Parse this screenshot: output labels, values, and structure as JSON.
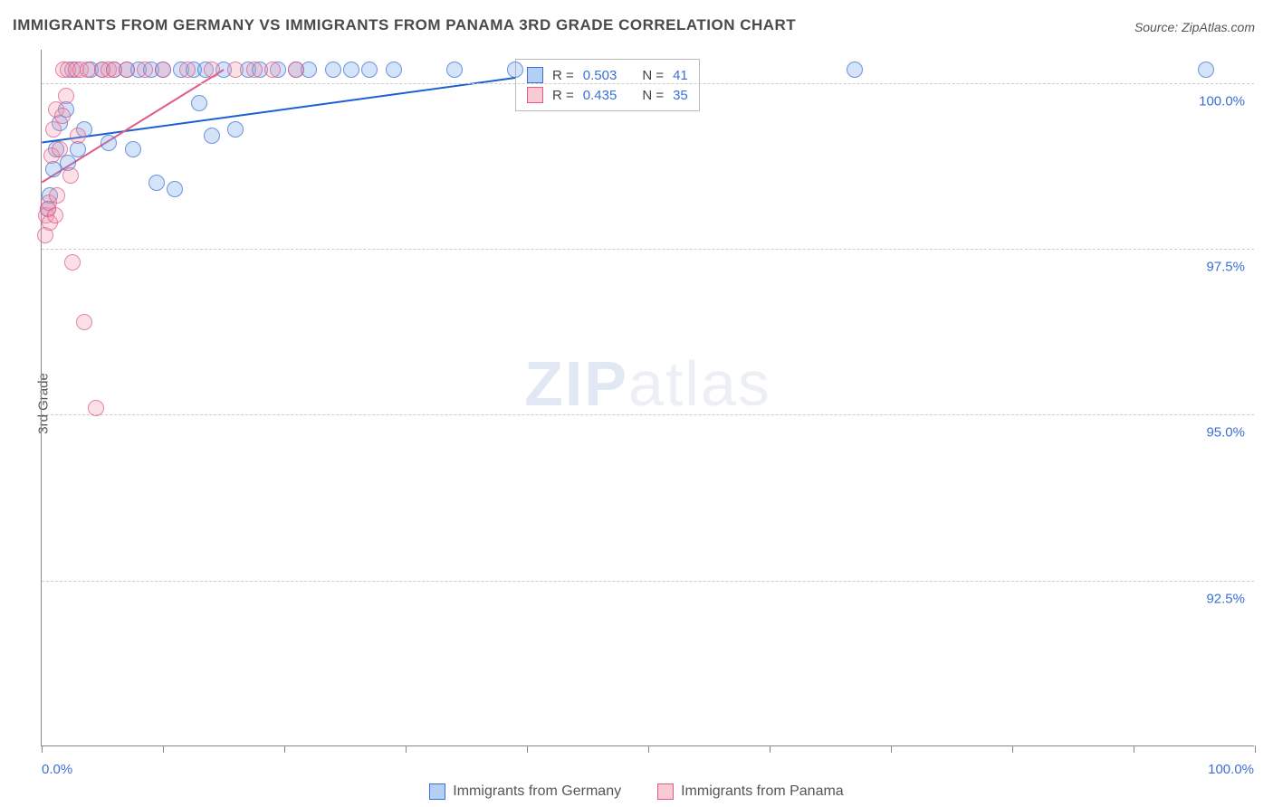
{
  "title": "IMMIGRANTS FROM GERMANY VS IMMIGRANTS FROM PANAMA 3RD GRADE CORRELATION CHART",
  "source_label": "Source: ZipAtlas.com",
  "y_axis_title": "3rd Grade",
  "watermark": {
    "bold": "ZIP",
    "light": "atlas"
  },
  "chart": {
    "type": "scatter",
    "background_color": "#ffffff",
    "grid_color": "#cccccc",
    "axis_color": "#888888",
    "text_color": "#555555",
    "value_color": "#3b6fd6",
    "xlim": [
      0,
      100
    ],
    "ylim": [
      90,
      100.5
    ],
    "x_ticks": [
      0,
      10,
      20,
      30,
      40,
      50,
      60,
      70,
      80,
      90,
      100
    ],
    "x_tick_labels": {
      "0": "0.0%",
      "100": "100.0%"
    },
    "y_gridlines": [
      92.5,
      95.0,
      97.5,
      100.0
    ],
    "y_tick_labels": {
      "92.5": "92.5%",
      "95.0": "95.0%",
      "97.5": "97.5%",
      "100.0": "100.0%"
    },
    "marker_size": 18,
    "series": [
      {
        "name": "Immigrants from Germany",
        "fill_color": "rgba(108,160,230,0.4)",
        "stroke_color": "#3b6fd6",
        "r_value": "0.503",
        "n_value": "41",
        "trendline": {
          "x1": 0,
          "y1": 99.1,
          "x2": 40,
          "y2": 100.1,
          "color": "#1b5fd1",
          "width": 2
        },
        "points": [
          [
            0.5,
            98.1
          ],
          [
            0.7,
            98.3
          ],
          [
            1.0,
            98.7
          ],
          [
            1.2,
            99.0
          ],
          [
            1.5,
            99.4
          ],
          [
            2.0,
            99.6
          ],
          [
            2.2,
            98.8
          ],
          [
            2.5,
            100.2
          ],
          [
            3.0,
            99.0
          ],
          [
            3.5,
            99.3
          ],
          [
            4.0,
            100.2
          ],
          [
            5.0,
            100.2
          ],
          [
            5.5,
            99.1
          ],
          [
            6.0,
            100.2
          ],
          [
            7.0,
            100.2
          ],
          [
            7.5,
            99.0
          ],
          [
            8.0,
            100.2
          ],
          [
            9.0,
            100.2
          ],
          [
            9.5,
            98.5
          ],
          [
            10.0,
            100.2
          ],
          [
            11.0,
            98.4
          ],
          [
            11.5,
            100.2
          ],
          [
            12.5,
            100.2
          ],
          [
            13.0,
            99.7
          ],
          [
            13.5,
            100.2
          ],
          [
            14.0,
            99.2
          ],
          [
            15.0,
            100.2
          ],
          [
            16.0,
            99.3
          ],
          [
            17.0,
            100.2
          ],
          [
            18.0,
            100.2
          ],
          [
            19.5,
            100.2
          ],
          [
            21.0,
            100.2
          ],
          [
            22.0,
            100.2
          ],
          [
            24.0,
            100.2
          ],
          [
            25.5,
            100.2
          ],
          [
            27.0,
            100.2
          ],
          [
            29.0,
            100.2
          ],
          [
            34.0,
            100.2
          ],
          [
            39.0,
            100.2
          ],
          [
            67.0,
            100.2
          ],
          [
            96.0,
            100.2
          ]
        ]
      },
      {
        "name": "Immigrants from Panama",
        "fill_color": "rgba(240,150,170,0.4)",
        "stroke_color": "#e05a8a",
        "r_value": "0.435",
        "n_value": "35",
        "trendline": {
          "x1": 0,
          "y1": 98.5,
          "x2": 15,
          "y2": 100.2,
          "color": "#e05a8a",
          "width": 2
        },
        "points": [
          [
            0.3,
            97.7
          ],
          [
            0.4,
            98.0
          ],
          [
            0.5,
            98.1
          ],
          [
            0.6,
            98.2
          ],
          [
            0.7,
            97.9
          ],
          [
            0.8,
            98.9
          ],
          [
            1.0,
            99.3
          ],
          [
            1.1,
            98.0
          ],
          [
            1.2,
            99.6
          ],
          [
            1.3,
            98.3
          ],
          [
            1.5,
            99.0
          ],
          [
            1.7,
            99.5
          ],
          [
            1.8,
            100.2
          ],
          [
            2.0,
            99.8
          ],
          [
            2.2,
            100.2
          ],
          [
            2.4,
            98.6
          ],
          [
            2.5,
            97.3
          ],
          [
            2.8,
            100.2
          ],
          [
            3.0,
            99.2
          ],
          [
            3.2,
            100.2
          ],
          [
            3.5,
            96.4
          ],
          [
            3.8,
            100.2
          ],
          [
            4.5,
            95.1
          ],
          [
            5.0,
            100.2
          ],
          [
            5.5,
            100.2
          ],
          [
            6.0,
            100.2
          ],
          [
            7.0,
            100.2
          ],
          [
            8.5,
            100.2
          ],
          [
            10.0,
            100.2
          ],
          [
            12.0,
            100.2
          ],
          [
            14.0,
            100.2
          ],
          [
            16.0,
            100.2
          ],
          [
            17.5,
            100.2
          ],
          [
            19.0,
            100.2
          ],
          [
            21.0,
            100.2
          ]
        ]
      }
    ]
  },
  "stats_box": {
    "r_label": "R =",
    "n_label": "N ="
  },
  "bottom_legend": [
    {
      "series": 0
    },
    {
      "series": 1
    }
  ]
}
